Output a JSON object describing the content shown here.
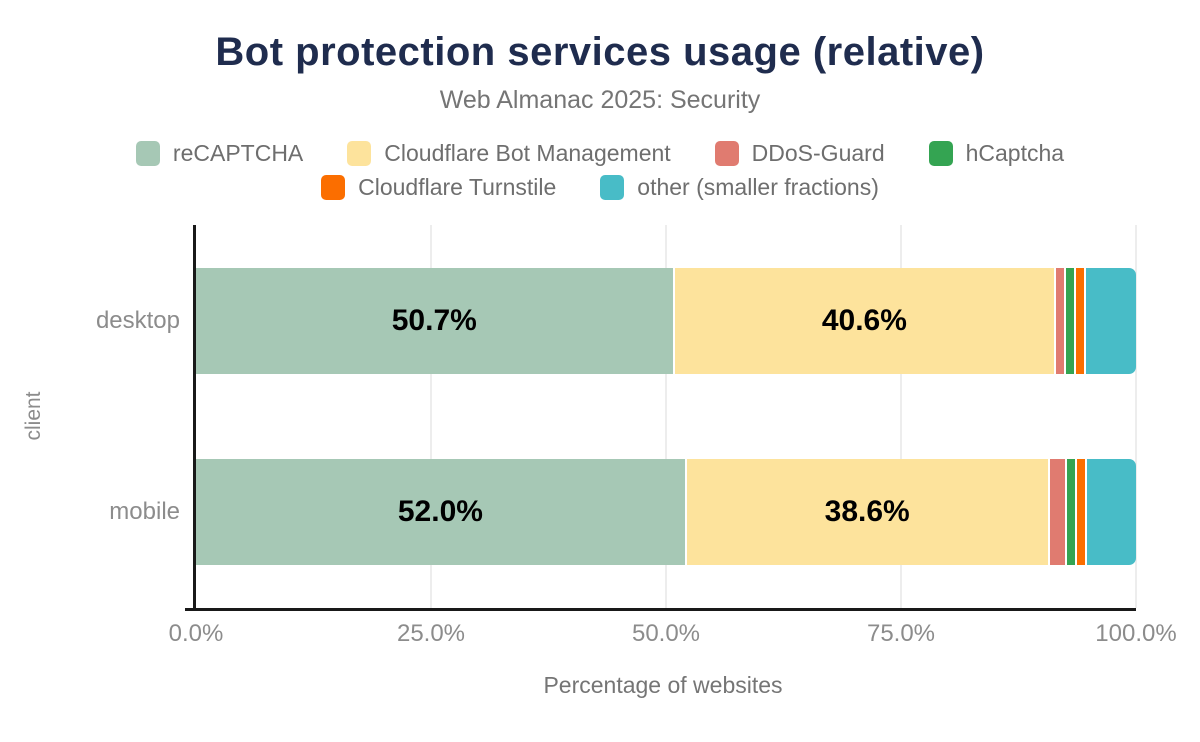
{
  "header": {
    "title": "Bot protection services usage (relative)",
    "subtitle": "Web Almanac 2025: Security"
  },
  "chart_data": {
    "type": "bar",
    "variant": "horizontal-stacked",
    "title": "Bot protection services usage (relative)",
    "subtitle": "Web Almanac 2025: Security",
    "xlabel": "Percentage of websites",
    "ylabel": "client",
    "xlim": [
      0,
      100
    ],
    "x_ticks": [
      "0.0%",
      "25.0%",
      "50.0%",
      "75.0%",
      "100.0%"
    ],
    "x_tick_values": [
      0,
      25,
      50,
      75,
      100
    ],
    "grid": "vertical",
    "legend_position": "top",
    "legend_rows": [
      [
        0,
        1,
        2,
        3
      ],
      [
        4,
        5
      ]
    ],
    "categories": [
      "desktop",
      "mobile"
    ],
    "series": [
      {
        "name": "reCAPTCHA",
        "color": "#a6c8b5",
        "values": [
          50.7,
          52.0
        ],
        "labels": [
          "50.7%",
          "52.0%"
        ],
        "show_labels": true
      },
      {
        "name": "Cloudflare Bot Management",
        "color": "#fde39c",
        "values": [
          40.6,
          38.6
        ],
        "labels": [
          "40.6%",
          "38.6%"
        ],
        "show_labels": true
      },
      {
        "name": "DDoS-Guard",
        "color": "#e07b70",
        "values": [
          1.0,
          1.9
        ],
        "show_labels": false
      },
      {
        "name": "hCaptcha",
        "color": "#34a452",
        "values": [
          1.1,
          1.0
        ],
        "show_labels": false
      },
      {
        "name": "Cloudflare Turnstile",
        "color": "#fb6e00",
        "values": [
          1.1,
          1.1
        ],
        "show_labels": false
      },
      {
        "name": "other (smaller fractions)",
        "color": "#48bcc7",
        "values": [
          5.5,
          5.4
        ],
        "show_labels": false
      }
    ],
    "colors": {
      "title": "#1f2c4e",
      "subtitle_text": "#757575",
      "axis_line": "#191919",
      "gridline": "#ededed",
      "tick_text": "#8c8c8c",
      "legend_text": "#6e6e6e",
      "bar_label_text": "#000000"
    }
  }
}
